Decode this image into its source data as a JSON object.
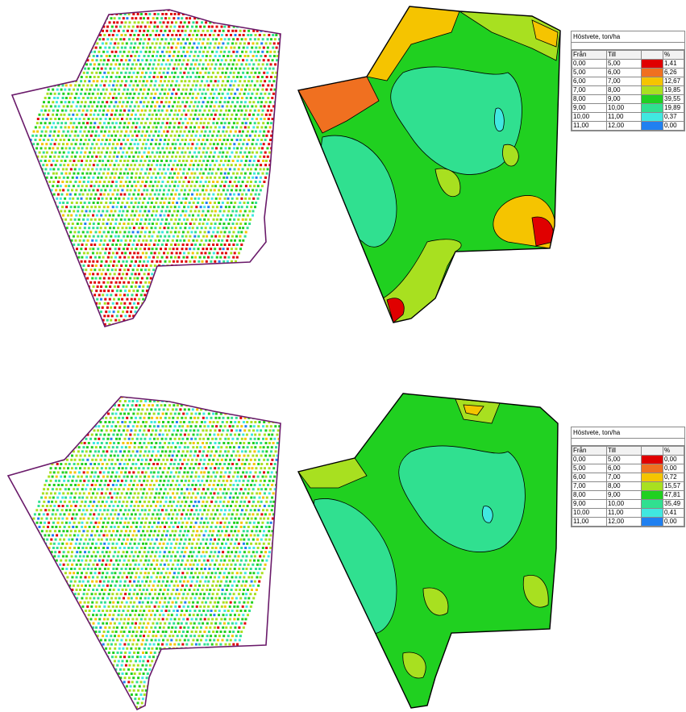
{
  "legends": [
    {
      "title": "Höstvete, ton/ha",
      "headers": {
        "from": "Från",
        "to": "Till",
        "color": "",
        "pct": "%"
      },
      "rows": [
        {
          "from": "0,00",
          "to": "5,00",
          "color": "#e00000",
          "pct": "1,41"
        },
        {
          "from": "5,00",
          "to": "6,00",
          "color": "#f07020",
          "pct": "6,26"
        },
        {
          "from": "6,00",
          "to": "7,00",
          "color": "#f5c400",
          "pct": "12,67"
        },
        {
          "from": "7,00",
          "to": "8,00",
          "color": "#a8e020",
          "pct": "19,85"
        },
        {
          "from": "8,00",
          "to": "9,00",
          "color": "#20d020",
          "pct": "39,55"
        },
        {
          "from": "9,00",
          "to": "10,00",
          "color": "#30e090",
          "pct": "19,89"
        },
        {
          "from": "10,00",
          "to": "11,00",
          "color": "#40e8e0",
          "pct": "0,37"
        },
        {
          "from": "11,00",
          "to": "12,00",
          "color": "#2080f0",
          "pct": "0,00"
        }
      ]
    },
    {
      "title": "Höstvete, ton/ha",
      "headers": {
        "from": "Från",
        "to": "Till",
        "color": "",
        "pct": "%"
      },
      "rows": [
        {
          "from": "0,00",
          "to": "5,00",
          "color": "#e00000",
          "pct": "0,00"
        },
        {
          "from": "5,00",
          "to": "6,00",
          "color": "#f07020",
          "pct": "0,00"
        },
        {
          "from": "6,00",
          "to": "7,00",
          "color": "#f5c400",
          "pct": "0,72"
        },
        {
          "from": "7,00",
          "to": "8,00",
          "color": "#a8e020",
          "pct": "15,57"
        },
        {
          "from": "8,00",
          "to": "9,00",
          "color": "#20d020",
          "pct": "47,81"
        },
        {
          "from": "9,00",
          "to": "10,00",
          "color": "#30e090",
          "pct": "35,49"
        },
        {
          "from": "10,00",
          "to": "11,00",
          "color": "#40e8e0",
          "pct": "0,41"
        },
        {
          "from": "11,00",
          "to": "12,00",
          "color": "#2080f0",
          "pct": "0,00"
        }
      ]
    }
  ],
  "colors": {
    "boundary": "#6a1a6a",
    "contour_line": "#000000",
    "dot_palette": [
      "#e00000",
      "#f5c400",
      "#a8e020",
      "#20d020",
      "#30e090",
      "#40e8e0",
      "#2080f0"
    ]
  }
}
